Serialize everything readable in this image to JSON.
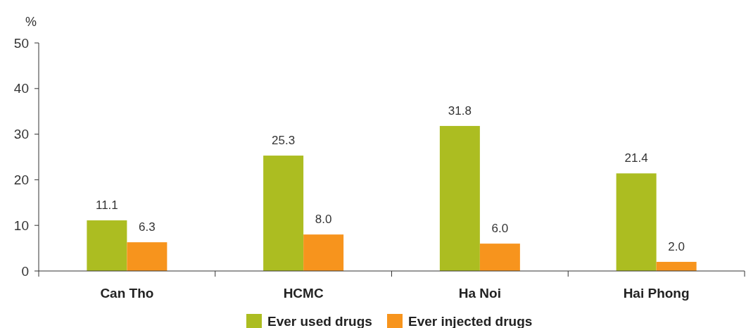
{
  "chart_data": {
    "type": "bar",
    "ylabel": "%",
    "categories": [
      "Can Tho",
      "HCMC",
      "Ha Noi",
      "Hai Phong"
    ],
    "series": [
      {
        "name": "Ever used drugs",
        "color": "#acbd21",
        "values": [
          11.1,
          25.3,
          31.8,
          21.4
        ]
      },
      {
        "name": "Ever injected drugs",
        "color": "#f7941d",
        "values": [
          6.3,
          8.0,
          6.0,
          2.0
        ]
      }
    ],
    "value_labels": [
      [
        "11.1",
        "25.3",
        "31.8",
        "21.4"
      ],
      [
        "6.3",
        "8.0",
        "6.0",
        "2.0"
      ]
    ],
    "ylim": [
      0,
      50
    ],
    "yticks": [
      0,
      10,
      20,
      30,
      40,
      50
    ],
    "grid": false,
    "legend": "bottom"
  }
}
